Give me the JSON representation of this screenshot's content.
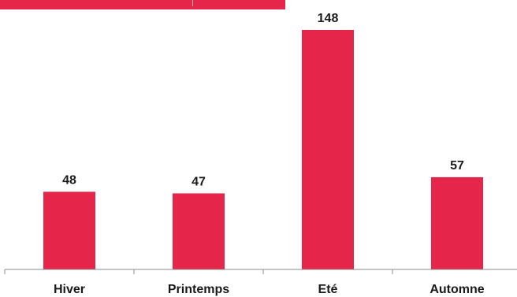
{
  "colors": {
    "bar": "#e5264a",
    "banner": "#e5264a",
    "axis": "#8c8c8c",
    "text": "#1a1a1a"
  },
  "chart_data": {
    "type": "bar",
    "categories": [
      "Hiver",
      "Printemps",
      "Eté",
      "Automne"
    ],
    "values": [
      48,
      47,
      148,
      57
    ],
    "title": "",
    "xlabel": "",
    "ylabel": "",
    "ylim": [
      0,
      160
    ],
    "grid": false,
    "legend": "none",
    "data_labels": true
  }
}
